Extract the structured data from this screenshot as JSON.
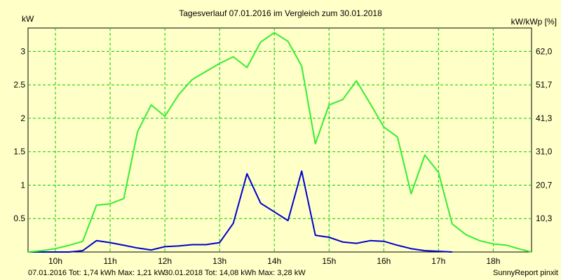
{
  "chart_data": {
    "type": "line",
    "title": "Tagesverlauf 07.01.2016 im Vergleich zum 30.01.2018",
    "ylabel_left": "kW",
    "ylabel_right": "kW/kWp [%]",
    "xlim": [
      9.5,
      18.7
    ],
    "ylim": [
      0,
      3.35
    ],
    "x_ticks": [
      "10h",
      "11h",
      "12h",
      "13h",
      "14h",
      "15h",
      "16h",
      "17h",
      "18h"
    ],
    "y_ticks_left": [
      "0.5",
      "1",
      "1.5",
      "2",
      "2.5",
      "3"
    ],
    "y_ticks_right": [
      "10,3",
      "20,7",
      "31,0",
      "41,3",
      "51,7",
      "62,0"
    ],
    "grid": true,
    "colors": {
      "background": "#ffffc8",
      "grid": "#00cc00",
      "series_2016": "#0000cc",
      "series_2018": "#33ee33",
      "footer_2016": "#0000cc",
      "footer_2018": "#22aa22"
    },
    "series": [
      {
        "key": "2016",
        "x": [
          9.5,
          10.25,
          10.5,
          10.75,
          11.0,
          11.25,
          11.5,
          11.75,
          12.0,
          12.25,
          12.5,
          12.75,
          13.0,
          13.25,
          13.5,
          13.75,
          14.0,
          14.25,
          14.5,
          14.75,
          15.0,
          15.25,
          15.5,
          15.75,
          16.0,
          16.25,
          16.5,
          16.75,
          17.0,
          17.25
        ],
        "y": [
          0.0,
          0.0,
          0.02,
          0.17,
          0.14,
          0.1,
          0.06,
          0.03,
          0.08,
          0.09,
          0.11,
          0.11,
          0.14,
          0.43,
          1.17,
          0.73,
          0.6,
          0.47,
          1.21,
          0.25,
          0.22,
          0.15,
          0.13,
          0.17,
          0.16,
          0.1,
          0.05,
          0.02,
          0.01,
          0.0
        ]
      },
      {
        "key": "2018",
        "x": [
          9.5,
          9.75,
          10.0,
          10.25,
          10.5,
          10.75,
          11.0,
          11.25,
          11.5,
          11.75,
          12.0,
          12.25,
          12.5,
          12.75,
          13.0,
          13.25,
          13.5,
          13.75,
          14.0,
          14.25,
          14.5,
          14.75,
          15.0,
          15.25,
          15.5,
          15.75,
          16.0,
          16.25,
          16.5,
          16.75,
          17.0,
          17.25,
          17.5,
          17.75,
          18.0,
          18.25,
          18.5,
          18.7
        ],
        "y": [
          0.0,
          0.02,
          0.05,
          0.1,
          0.16,
          0.7,
          0.72,
          0.8,
          1.8,
          2.2,
          2.03,
          2.35,
          2.58,
          2.7,
          2.82,
          2.92,
          2.76,
          3.14,
          3.28,
          3.15,
          2.78,
          1.62,
          2.2,
          2.28,
          2.56,
          2.22,
          1.87,
          1.72,
          0.87,
          1.45,
          1.19,
          0.42,
          0.26,
          0.17,
          0.12,
          0.1,
          0.04,
          0.0
        ]
      }
    ]
  },
  "footer": {
    "left_2016": "07.01.2016 Tot: 1,74 kWh Max: 1,21 kW",
    "left_2018": "30.01.2018 Tot: 14,08 kWh Max: 3,28 kW",
    "credit": "SunnyReport pinxit"
  }
}
